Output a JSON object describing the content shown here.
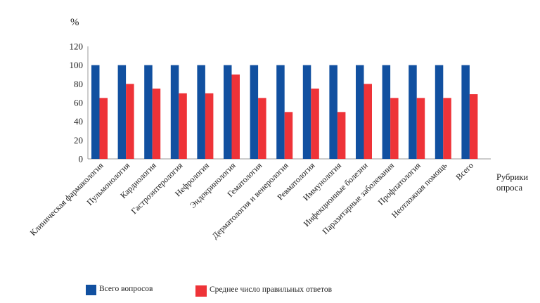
{
  "chart_data": {
    "type": "bar",
    "title": "",
    "ylabel": "%",
    "xlabel": "Рубрики опроса",
    "xlabel_lines": [
      "Рубрики",
      "опроса"
    ],
    "ylim": [
      0,
      120
    ],
    "yticks": [
      0,
      20,
      40,
      60,
      80,
      100,
      120
    ],
    "grid": false,
    "legend_position": "bottom",
    "categories": [
      "Клиническая фармакология",
      "Пульмонология",
      "Кардиология",
      "Гастроэнтерология",
      "Нефрология",
      "Эндокринология",
      "Гематология",
      "Дерматология и венерология",
      "Ревматология",
      "Иммунология",
      "Инфекционные болезни",
      "Паразитарные заболевания",
      "Профпатология",
      "Неотложная помощь",
      "Всего"
    ],
    "series": [
      {
        "name": "Всего вопросов",
        "color": "#1150a0",
        "values": [
          100,
          100,
          100,
          100,
          100,
          100,
          100,
          100,
          100,
          100,
          100,
          100,
          100,
          100,
          100
        ]
      },
      {
        "name": "Среднее число правильных ответов",
        "color": "#ee3338",
        "values": [
          65,
          80,
          75,
          70,
          70,
          90,
          65,
          50,
          75,
          50,
          80,
          65,
          65,
          65,
          69
        ]
      }
    ]
  }
}
